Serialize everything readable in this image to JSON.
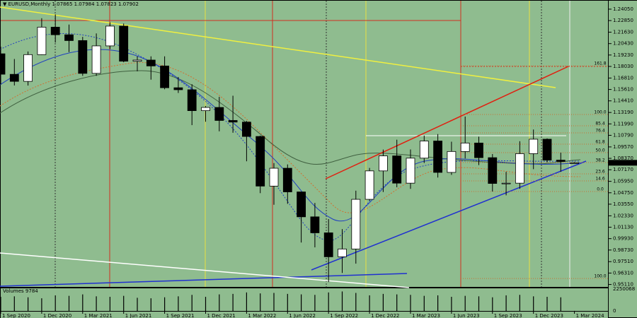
{
  "chart_data": {
    "type": "candlestick",
    "title": "▼ EURUSD,Monthly 1.07865 1.07984 1.07823 1.07902",
    "categories": [
      "1 Sep 2020",
      null,
      null,
      "1 Dec 2020",
      null,
      null,
      "1 Mar 2021",
      null,
      null,
      "1 Jun 2021",
      null,
      null,
      "1 Sep 2021",
      null,
      null,
      "1 Dec 2021",
      null,
      null,
      "1 Mar 2022",
      null,
      null,
      "1 Jun 2022",
      null,
      null,
      "1 Sep 2022",
      null,
      null,
      "1 Dec 2022",
      null,
      null,
      "1 Mar 2023",
      null,
      null,
      "1 Jun 2023",
      null,
      null,
      "1 Sep 2023",
      null,
      null,
      "1 Dec 2023",
      null,
      null,
      "1 Mar 2024"
    ],
    "open": [
      1.1936,
      1.172,
      1.1646,
      1.1927,
      1.2216,
      1.2136,
      1.2075,
      1.173,
      1.2019,
      1.2227,
      1.1858,
      1.187,
      1.1808,
      1.1579,
      1.1558,
      1.1338,
      1.1372,
      1.1235,
      1.1218,
      1.1067,
      1.0545,
      1.0733,
      1.0484,
      1.0222,
      1.0054,
      0.9802,
      0.9884,
      1.0406,
      1.0705,
      1.0863,
      1.0576,
      1.0839,
      1.1019,
      1.0689,
      1.0909,
      1.0998,
      1.0844,
      1.0573,
      1.0576,
      1.0886,
      1.1038,
      1.0818,
      1.07865
    ],
    "high": [
      1.2011,
      1.1881,
      1.196,
      1.231,
      1.235,
      1.2243,
      1.2114,
      1.215,
      1.2266,
      1.2254,
      1.1909,
      1.1909,
      1.1909,
      1.1692,
      1.1616,
      1.1386,
      1.1483,
      1.1495,
      1.123,
      1.1076,
      1.0787,
      1.0773,
      1.0486,
      1.0368,
      1.0198,
      1.0093,
      1.0497,
      1.0736,
      1.0929,
      1.1033,
      1.093,
      1.1076,
      1.1092,
      1.1012,
      1.1276,
      1.1065,
      1.0882,
      1.0695,
      1.1017,
      1.114,
      1.1046,
      1.0897,
      1.07984
    ],
    "low": [
      1.1612,
      1.1603,
      1.1602,
      1.1924,
      1.2054,
      1.1953,
      1.1704,
      1.1704,
      1.1986,
      1.1847,
      1.1752,
      1.1664,
      1.1563,
      1.1524,
      1.1186,
      1.1222,
      1.1121,
      1.1106,
      1.0806,
      1.0471,
      1.0349,
      1.0359,
      0.9952,
      0.9901,
      0.9536,
      0.9632,
      0.973,
      1.0393,
      1.0483,
      1.0533,
      1.0516,
      1.0788,
      1.0635,
      1.0663,
      1.0835,
      1.0766,
      1.0488,
      1.0448,
      1.0517,
      1.0723,
      1.0795,
      1.0695,
      1.07823
    ],
    "close": [
      1.1721,
      1.1646,
      1.1927,
      1.2216,
      1.2136,
      1.2075,
      1.173,
      1.2019,
      1.2227,
      1.1858,
      1.187,
      1.1808,
      1.1579,
      1.1558,
      1.1338,
      1.1372,
      1.1235,
      1.1218,
      1.1067,
      1.0545,
      1.0733,
      1.0484,
      1.0222,
      1.0054,
      0.9802,
      0.9884,
      1.0406,
      1.0705,
      1.0863,
      1.0576,
      1.0839,
      1.1019,
      1.0689,
      1.0909,
      1.0998,
      1.0844,
      1.0573,
      1.0576,
      1.0886,
      1.1038,
      1.0818,
      1.0804,
      1.07902
    ],
    "up_color": "#ffffff",
    "down_color": "#000000",
    "background": "#8fbc8f",
    "ylim": [
      0.9478,
      1.2479
    ],
    "yticks": [
      {
        "value": 1.2405,
        "label": "1.24050"
      },
      {
        "value": 1.2285,
        "label": "1.22850"
      },
      {
        "value": 1.2163,
        "label": "1.21630"
      },
      {
        "value": 1.2043,
        "label": "1.20430"
      },
      {
        "value": 1.1923,
        "label": "1.19230"
      },
      {
        "value": 1.1803,
        "label": "1.18030"
      },
      {
        "value": 1.1681,
        "label": "1.16810"
      },
      {
        "value": 1.1561,
        "label": "1.15610"
      },
      {
        "value": 1.1441,
        "label": "1.14410"
      },
      {
        "value": 1.1319,
        "label": "1.13190"
      },
      {
        "value": 1.1199,
        "label": "1.11990"
      },
      {
        "value": 1.1079,
        "label": "1.10790"
      },
      {
        "value": 1.0957,
        "label": "1.09570"
      },
      {
        "value": 1.0837,
        "label": "1.08370"
      },
      {
        "value": 1.0717,
        "label": "1.07170"
      },
      {
        "value": 1.0595,
        "label": "1.05950"
      },
      {
        "value": 1.0475,
        "label": "1.04750"
      },
      {
        "value": 1.0355,
        "label": "1.03550"
      },
      {
        "value": 1.0233,
        "label": "1.02330"
      },
      {
        "value": 1.0113,
        "label": "1.01130"
      },
      {
        "value": 0.9993,
        "label": "0.99930"
      },
      {
        "value": 0.9873,
        "label": "0.98730"
      },
      {
        "value": 0.9751,
        "label": "0.97510"
      },
      {
        "value": 0.9631,
        "label": "0.96310"
      },
      {
        "value": 0.9511,
        "label": "0.95110"
      }
    ],
    "fib_levels": [
      {
        "label": "161.8",
        "price": 1.1809
      },
      {
        "label": "100.0",
        "price": 1.1298
      },
      {
        "label": "85.4",
        "price": 1.1179
      },
      {
        "label": "76.4",
        "price": 1.1105
      },
      {
        "label": "61.8",
        "price": 1.0986
      },
      {
        "label": "50.0",
        "price": 1.0897
      },
      {
        "label": "38.2",
        "price": 1.0793
      },
      {
        "label": "23.6",
        "price": 1.0674
      },
      {
        "label": "14.6",
        "price": 1.06
      },
      {
        "label": "0.0",
        "price": 1.0488
      },
      {
        "label": "100.0",
        "price": 0.9574
      }
    ],
    "volume": {
      "label": "Volumes 9784",
      "values": [
        1450000,
        1500000,
        1400000,
        1300000,
        1600000,
        1550000,
        1700000,
        1500000,
        1450000,
        1550000,
        1350000,
        1300000,
        1400000,
        1500000,
        1650000,
        1450000,
        1700000,
        1750000,
        1900000,
        1800000,
        1850000,
        1750000,
        1700000,
        1650000,
        1900000,
        2000000,
        1850000,
        1600000,
        1750000,
        1700000,
        1650000,
        1550000,
        1600000,
        1450000,
        1550000,
        1500000,
        1400000,
        1600000,
        1650000,
        1500000,
        1450000,
        1400000,
        9784
      ],
      "ylim": [
        0,
        2250068
      ],
      "yticks": [
        2250068,
        0
      ]
    }
  }
}
